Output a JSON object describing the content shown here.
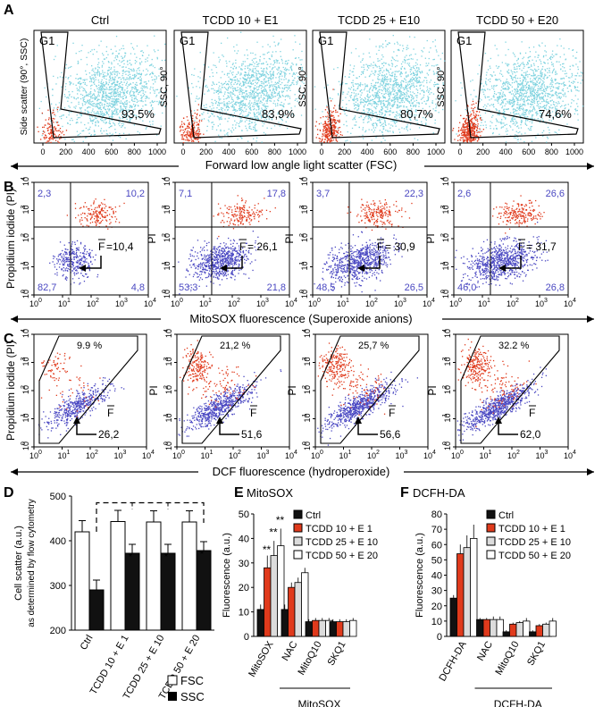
{
  "colors": {
    "red": "#e03a1c",
    "blue": "#4a48c2",
    "cyan": "#7fd3df",
    "black": "#111111",
    "pink": "#f3a3a3",
    "lightgray": "#d9d9d9"
  },
  "panelA": {
    "letter": "A",
    "ylabels": [
      "Side scatter (90°, SSC)",
      "SSC, 90°",
      "SSC, 90°",
      "SSC, 90°"
    ],
    "titles": [
      "Ctrl",
      "TCDD 10 + E1",
      "TCDD 25 + E10",
      "TCDD 50 + E20"
    ],
    "gate": "G1",
    "percents": [
      "93,5%",
      "83,9%",
      "80,7%",
      "74,6%"
    ],
    "xticks": [
      "0",
      "200",
      "400",
      "600",
      "800",
      "1000"
    ],
    "xlabel": "Forward low angle light scatter (FSC)"
  },
  "panelB": {
    "letter": "B",
    "ylabels": [
      "Propidium iodide (PI)",
      "PI",
      "PI",
      "PI"
    ],
    "quadrants": [
      {
        "ul": "2,3",
        "ur": "10,2",
        "ll": "82,7",
        "lr": "4,8",
        "f": "=10,4"
      },
      {
        "ul": "7,1",
        "ur": "17,8",
        "ll": "53,3",
        "lr": "21,8",
        "f": "= 26,1"
      },
      {
        "ul": "3,7",
        "ur": "22,3",
        "ll": "48,5",
        "lr": "26,5",
        "f": "= 30,9"
      },
      {
        "ul": "2,6",
        "ur": "26,6",
        "ll": "46,0",
        "lr": "26,8",
        "f": "= 31,7"
      }
    ],
    "fbar": "F",
    "xlabel": "MitoSOX fluorescence (Superoxide anions)"
  },
  "panelC": {
    "letter": "C",
    "ylabels": [
      "Propidium iodide (PI)",
      "PI",
      "PI",
      "PI"
    ],
    "percents": [
      "9.9 %",
      "21,2 %",
      "25,7 %",
      "32.2 %"
    ],
    "fvalues": [
      "26,2",
      "51,6",
      "56,6",
      "62,0"
    ],
    "fbar": "F",
    "xlabel": "DCF fluorescence (hydroperoxide)"
  },
  "log_ticks": {
    "base": "10",
    "exps": [
      "0",
      "1",
      "2",
      "3",
      "4"
    ]
  },
  "chart_data": [
    {
      "type": "bar",
      "panel": "D",
      "categories": [
        "Ctrl",
        "TCDD 10 + E 1",
        "TCDD 25 + E 10",
        "TCDD 50 + E 20"
      ],
      "series": [
        {
          "name": "FSC",
          "values": [
            420,
            443,
            442,
            442
          ],
          "errors": [
            25,
            25,
            25,
            25
          ]
        },
        {
          "name": "SSC",
          "values": [
            290,
            372,
            372,
            378
          ],
          "errors": [
            22,
            20,
            20,
            20
          ]
        }
      ],
      "significance": [
        "",
        "*",
        "*",
        "*"
      ],
      "ylabel": "Cell scatter (a.u.)",
      "ylabel2": "as determined by flow cytometry",
      "ylim": [
        200,
        500
      ],
      "yticks": [
        "200",
        "300",
        "400",
        "500"
      ]
    },
    {
      "type": "bar",
      "panel": "E",
      "title": "MitoSOX",
      "categories": [
        "MitoSOX",
        "NAC",
        "MitoQ10",
        "SKQ1"
      ],
      "series": [
        {
          "name": "Ctrl",
          "values": [
            11,
            11,
            6,
            6
          ]
        },
        {
          "name": "TCDD 10 + E 1",
          "values": [
            28,
            20,
            6.5,
            6
          ]
        },
        {
          "name": "TCDD 25 + E 10",
          "values": [
            33,
            22,
            6.5,
            6
          ]
        },
        {
          "name": "TCDD 50 + E 20",
          "values": [
            37,
            26,
            6.5,
            6.5
          ]
        }
      ],
      "errors": [
        [
          2,
          2,
          1,
          1
        ],
        [
          5,
          2,
          1,
          1
        ],
        [
          6,
          2,
          1,
          1
        ],
        [
          7,
          2,
          1,
          1
        ]
      ],
      "annotations": [
        "**",
        "**",
        "**"
      ],
      "ylabel": "Fluorescence (a.u.)",
      "ylim": [
        0,
        50
      ],
      "yticks": [
        "0",
        "10",
        "20",
        "30",
        "40",
        "50"
      ],
      "group_label": "MitoSOX"
    },
    {
      "type": "bar",
      "panel": "F",
      "title": "DCFH-DA",
      "categories": [
        "DCFH-DA",
        "NAC",
        "MitoQ10",
        "SKQ1"
      ],
      "series": [
        {
          "name": "Ctrl",
          "values": [
            25,
            11,
            3,
            3
          ]
        },
        {
          "name": "TCDD 10 + E 1",
          "values": [
            54,
            11,
            8,
            7
          ]
        },
        {
          "name": "TCDD 25 + E 10",
          "values": [
            58,
            11,
            9,
            8
          ]
        },
        {
          "name": "TCDD 50 + E 20",
          "values": [
            64,
            11,
            10,
            10
          ]
        }
      ],
      "errors": [
        [
          2,
          1,
          1,
          1
        ],
        [
          6,
          1,
          1,
          1
        ],
        [
          8,
          2,
          1,
          1
        ],
        [
          9,
          2,
          2,
          2
        ]
      ],
      "ylabel": "Fluorescence (a.u.)",
      "ylim": [
        0,
        80
      ],
      "yticks": [
        "0",
        "10",
        "20",
        "30",
        "40",
        "50",
        "60",
        "70",
        "80"
      ],
      "group_label": "DCFH-DA"
    }
  ],
  "legendD": [
    "FSC",
    "SSC"
  ],
  "legendEF": [
    "Ctrl",
    "TCDD 10 + E 1",
    "TCDD 25 + E 10",
    "TCDD 50 + E 20"
  ],
  "letters": {
    "D": "D",
    "E": "E",
    "F": "F"
  }
}
